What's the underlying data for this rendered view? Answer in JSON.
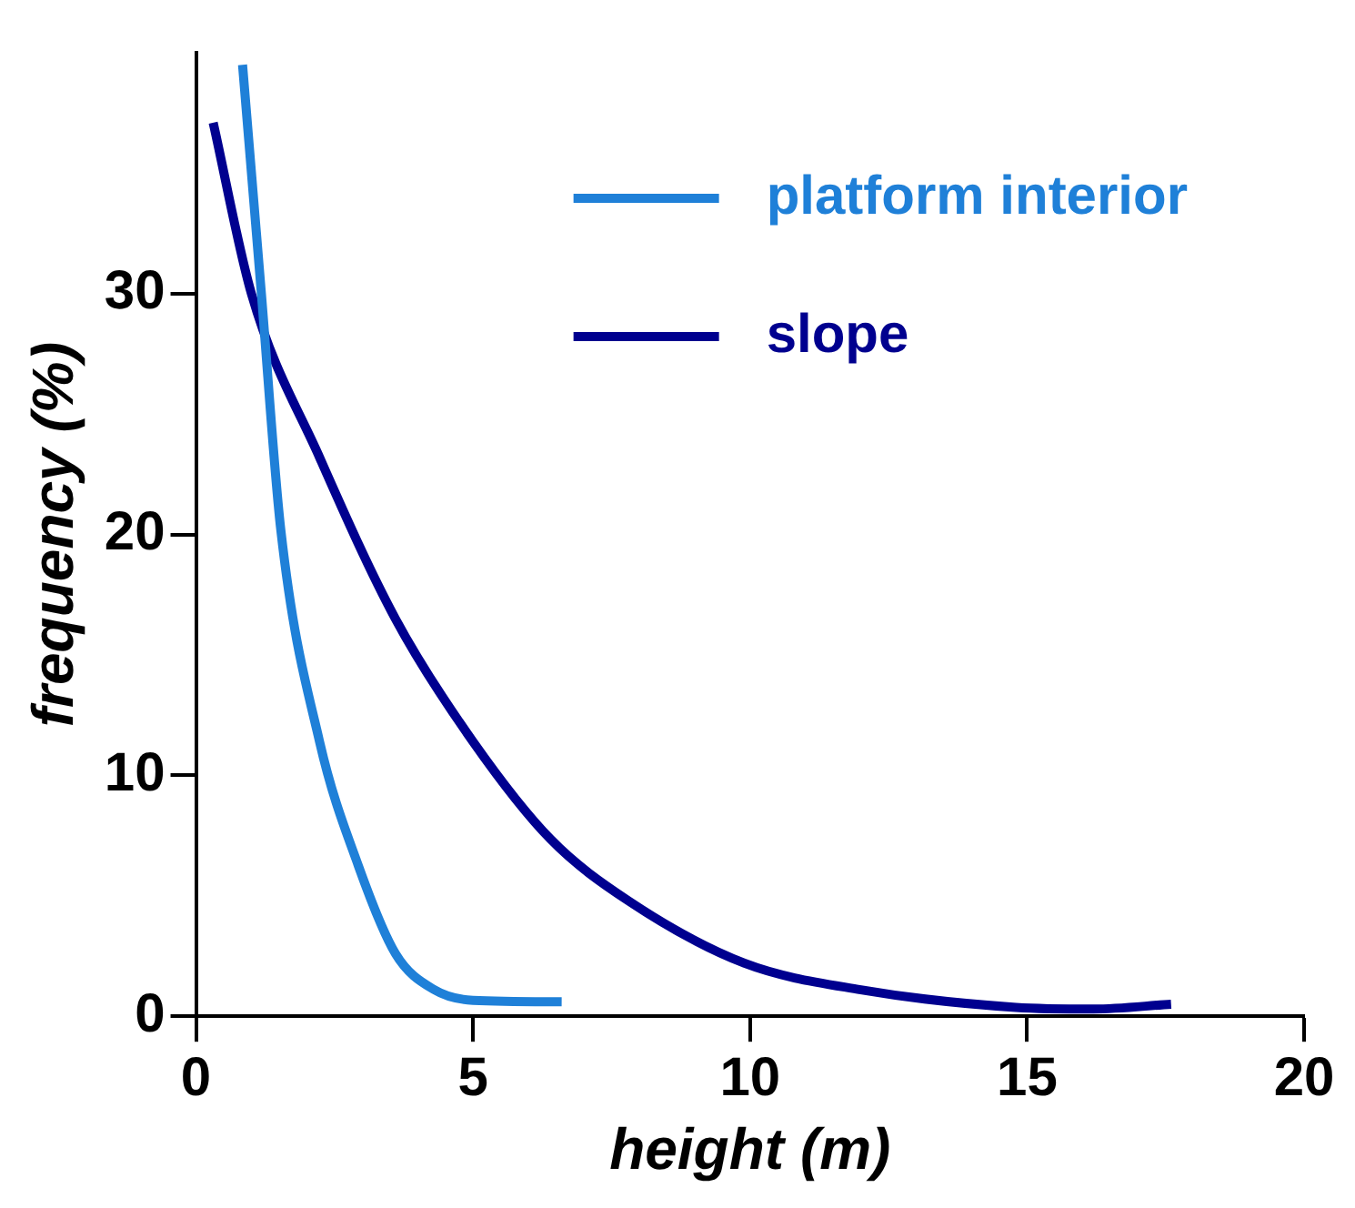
{
  "chart_data": {
    "type": "line",
    "xlabel": "height (m)",
    "ylabel": "frequency (%)",
    "xlim": [
      0,
      20
    ],
    "xticks": [
      0,
      5,
      10,
      15,
      20
    ],
    "ylim": [
      0,
      40
    ],
    "yticks": [
      0,
      10,
      20,
      30
    ],
    "grid": false,
    "legend": "top right",
    "marker": "none",
    "line_style": "solid",
    "series": [
      {
        "name": "platform interior",
        "color": "#1f80d8",
        "x": [
          0.84,
          1.18,
          1.53,
          2.23,
          2.93,
          3.6,
          4.3,
          5,
          6.6
        ],
        "values": [
          39.5,
          30,
          20.2,
          11.4,
          6.25,
          2.6,
          1.1,
          0.66,
          0.6
        ]
      },
      {
        "name": "slope",
        "color": "#00008f",
        "x": [
          0.31,
          1,
          2.23,
          3.6,
          5,
          6.4,
          7.8,
          9.9,
          12,
          14.8,
          16.2,
          17.6
        ],
        "values": [
          37.1,
          30,
          23.2,
          16.5,
          11.4,
          7.35,
          4.8,
          2.2,
          1.1,
          0.37,
          0.3,
          0.5
        ]
      }
    ]
  }
}
